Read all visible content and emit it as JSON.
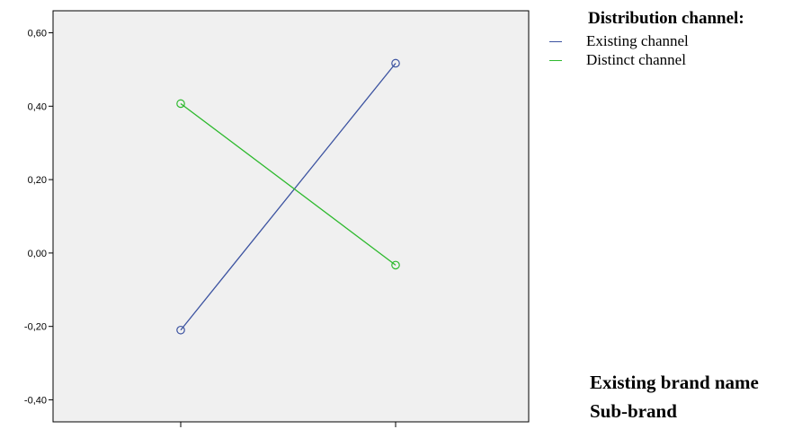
{
  "chart_data": {
    "type": "line",
    "categories": [
      "Existing brand name",
      "Sub-brand"
    ],
    "ylim": [
      -0.46,
      0.66
    ],
    "yticks": [
      "-0,40",
      "-0,20",
      "0,00",
      "0,20",
      "0,40",
      "0,60"
    ],
    "ytick_values": [
      -0.4,
      -0.2,
      0.0,
      0.2,
      0.4,
      0.6
    ],
    "legend_title": "Distribution channel:",
    "legend_position": "top-right",
    "grid": false,
    "plot_background": "#f0f0f0",
    "series": [
      {
        "name": "Existing channel",
        "values": [
          -0.21,
          0.517
        ],
        "color": "#3b52a0"
      },
      {
        "name": "Distinct channel",
        "values": [
          0.407,
          -0.033
        ],
        "color": "#2db92d"
      }
    ]
  }
}
